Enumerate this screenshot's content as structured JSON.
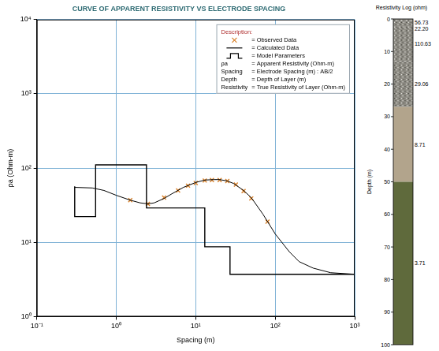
{
  "chart_data": {
    "type": "scatter",
    "title": "CURVE OF APPARENT RESISTIVITY VS ELECTRODE SPACING",
    "x_label": "Spacing (m)",
    "y_label": "ρa (Ohm-m)",
    "log": true,
    "grid": true,
    "legend": "upper right",
    "xlim": [
      0.1,
      1000
    ],
    "xticks": [
      {
        "value": 0.1,
        "label": "10⁻¹"
      },
      {
        "value": 1,
        "label": "10⁰"
      },
      {
        "value": 10,
        "label": "10¹"
      },
      {
        "value": 100,
        "label": "10²"
      },
      {
        "value": 1000,
        "label": "10³"
      }
    ],
    "ylim": [
      1,
      10000
    ],
    "yticks": [
      {
        "value": 1,
        "label": "10⁰"
      },
      {
        "value": 10,
        "label": "10¹"
      },
      {
        "value": 100,
        "label": "10²"
      },
      {
        "value": 1000,
        "label": "10³"
      },
      {
        "value": 10000,
        "label": "10⁴"
      }
    ],
    "series": [
      {
        "name": "Observed Data",
        "color": "#d9822b",
        "marker": "x",
        "line_style": "none",
        "x": [
          1.5,
          2.5,
          4,
          6,
          8,
          10,
          13,
          16,
          20,
          25,
          32,
          40,
          50,
          80
        ],
        "values": [
          37,
          33,
          40,
          50,
          58,
          63,
          68,
          69,
          69,
          67,
          60,
          49,
          39,
          19
        ]
      },
      {
        "name": "Calculated Data",
        "color": "#000000",
        "line_style": "solid",
        "x": [
          0.3,
          0.5,
          0.7,
          1,
          1.5,
          2,
          2.5,
          3,
          4,
          5,
          7,
          10,
          13,
          17,
          20,
          25,
          30,
          40,
          50,
          70,
          100,
          150,
          200,
          300,
          500,
          1000
        ],
        "values": [
          55,
          54,
          50,
          43,
          37,
          34,
          33,
          34,
          39,
          45,
          55,
          64,
          69,
          70,
          70,
          67,
          62,
          50,
          40,
          24,
          13,
          7.5,
          5.5,
          4.5,
          3.9,
          3.72
        ]
      },
      {
        "name": "Model Parameters",
        "color": "#000000",
        "line_style": "step",
        "x": [
          0.3,
          0.55,
          2.4,
          13,
          27,
          50,
          1000
        ],
        "values": [
          56.73,
          22.2,
          110.63,
          29.06,
          8.71,
          3.71,
          3.71
        ]
      }
    ],
    "description": {
      "title": "Description:",
      "separator": "=",
      "definitions": [
        {
          "key": "ρa",
          "text": "Apparent Resistivity (Ohm-m)"
        },
        {
          "key": "Spacing",
          "text": "Electrode Spacing (m) : AB/2"
        },
        {
          "key": "Depth",
          "text": "Depth of Layer (m)"
        },
        {
          "key": "Resistivity",
          "text": "True Resistivity of Layer (Ohm-m)"
        }
      ]
    }
  },
  "resistivity_log": {
    "title": "Resistivity Log (ohm)",
    "y_label": "Depth (m)",
    "ylim": [
      0,
      100
    ],
    "yticks": [
      0,
      10,
      20,
      30,
      40,
      50,
      60,
      70,
      80,
      90,
      100
    ],
    "layers": [
      {
        "top": 0,
        "bottom": 0.55,
        "resistivity": "56.73",
        "color": "#8e8c84"
      },
      {
        "top": 0.55,
        "bottom": 2.4,
        "resistivity": "22.20",
        "color": "#8e8c84"
      },
      {
        "top": 2.4,
        "bottom": 13,
        "resistivity": "110.63",
        "color": "#8e8c84"
      },
      {
        "top": 13,
        "bottom": 27,
        "resistivity": "29.06",
        "color": "#8e8c84"
      },
      {
        "top": 27,
        "bottom": 50,
        "resistivity": "8.71",
        "color": "#b2a48c"
      },
      {
        "top": 50,
        "bottom": 100,
        "resistivity": "3.71",
        "color": "#5f6a3c"
      }
    ]
  }
}
